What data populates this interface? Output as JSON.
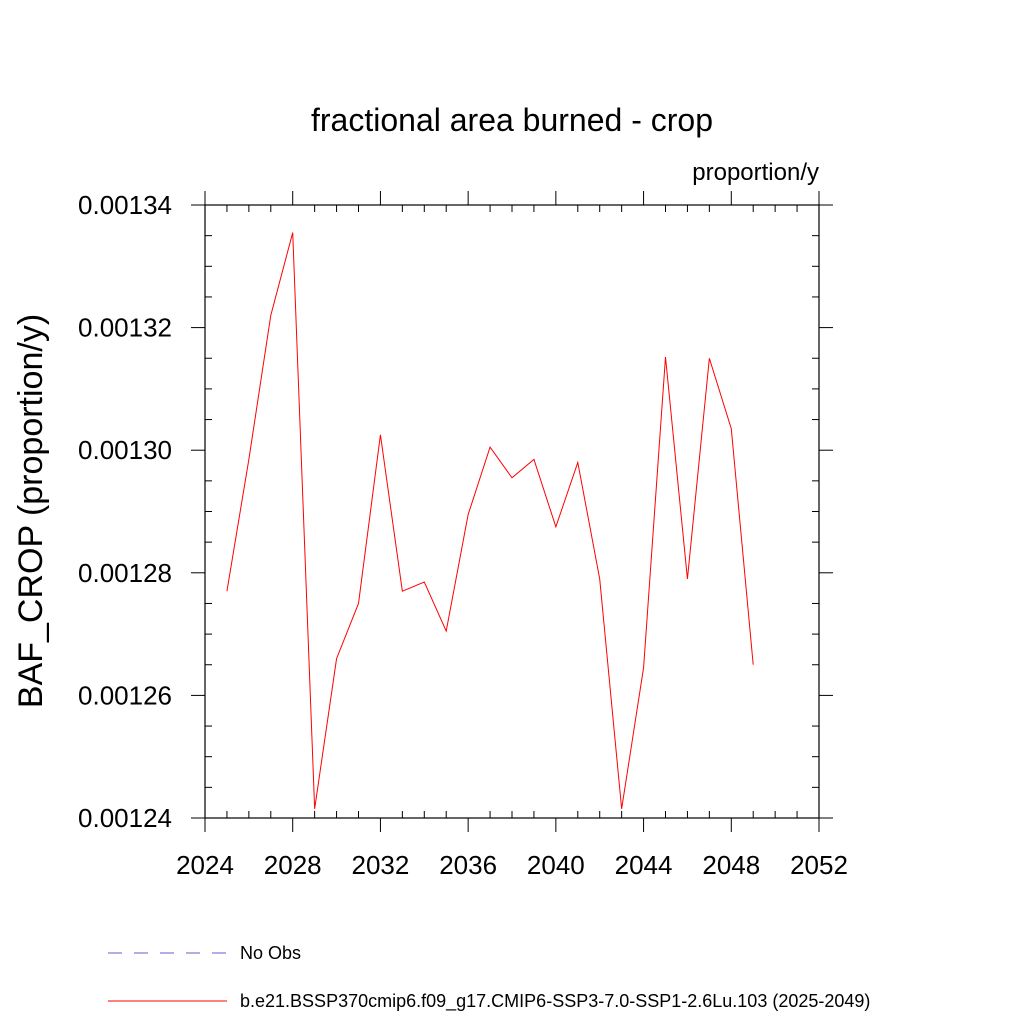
{
  "chart_data": {
    "type": "line",
    "title": "fractional area burned - crop",
    "units": "proportion/y",
    "ylabel": "BAF_CROP  (proportion/y)",
    "xlabel": "",
    "xlim": [
      2024,
      2052
    ],
    "ylim": [
      0.00124,
      0.00134
    ],
    "x_ticks": [
      2024,
      2028,
      2032,
      2036,
      2040,
      2044,
      2048,
      2052
    ],
    "x_tick_labels": [
      "2024",
      "2028",
      "2032",
      "2036",
      "2040",
      "2044",
      "2048",
      "2052"
    ],
    "y_ticks": [
      0.00124,
      0.00126,
      0.00128,
      0.0013,
      0.00132,
      0.00134
    ],
    "y_tick_labels": [
      "0.00124",
      "0.00126",
      "0.00128",
      "0.00130",
      "0.00132",
      "0.00134"
    ],
    "grid": false,
    "legend_position": "bottom",
    "series": [
      {
        "name": "b.e21.BSSP370cmip6.f09_g17.CMIP6-SSP3-7.0-SSP1-2.6Lu.103 (2025-2049)",
        "color": "#ff0000",
        "style": "solid",
        "x": [
          2025,
          2026,
          2027,
          2028,
          2029,
          2030,
          2031,
          2032,
          2033,
          2034,
          2035,
          2036,
          2037,
          2038,
          2039,
          2040,
          2041,
          2042,
          2043,
          2044,
          2045,
          2046,
          2047,
          2048,
          2049
        ],
        "y": [
          0.001277,
          0.0012985,
          0.001322,
          0.0013355,
          0.0012415,
          0.001266,
          0.001275,
          0.0013025,
          0.001277,
          0.0012785,
          0.0012705,
          0.0012895,
          0.0013005,
          0.0012955,
          0.0012985,
          0.0012875,
          0.001298,
          0.001279,
          0.0012415,
          0.0012645,
          0.0013152,
          0.001279,
          0.001315,
          0.0013035,
          0.001265
        ]
      }
    ],
    "legend": [
      {
        "label": "No Obs",
        "color": "#6a5acd",
        "style": "dashed"
      },
      {
        "label": "b.e21.BSSP370cmip6.f09_g17.CMIP6-SSP3-7.0-SSP1-2.6Lu.103 (2025-2049)",
        "color": "#ff0000",
        "style": "solid"
      }
    ]
  }
}
